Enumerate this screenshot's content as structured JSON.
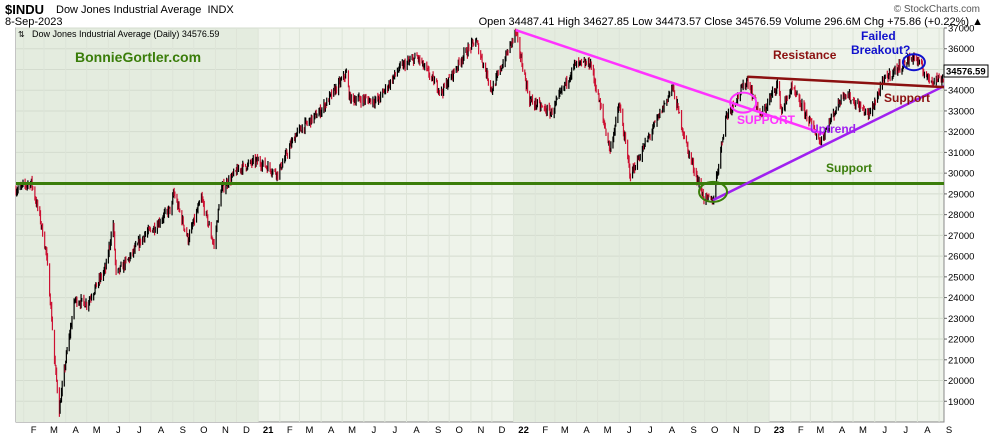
{
  "header": {
    "symbol": "$INDU",
    "name": "Dow Jones Industrial Average",
    "exchange": "INDX",
    "date": "8-Sep-2023",
    "ohlc_text": "Open 34487.41  High 34627.85  Low 34473.57  Close 34576.59  Volume 296.6M  Chg +75.86 (+0.22%) ▲",
    "brand": "© StockCharts.com"
  },
  "colors": {
    "up": "#000000",
    "down": "#cc1133",
    "support": "#3a7d0a",
    "magenta": "#ff33ff",
    "purple": "#a020f0",
    "resistance": "#8b1010",
    "blue": "#1111cc",
    "shade": "#e4ecdf",
    "panel": "#eef3ea"
  },
  "chart_data": {
    "type": "line",
    "title": "Dow Jones Industrial Average (Daily) 34576.59",
    "watermark": "BonnieGortler.com",
    "last_value_label": "34576.59",
    "ylim": [
      18000,
      37000
    ],
    "y_ticks": [
      19000,
      20000,
      21000,
      22000,
      23000,
      24000,
      25000,
      26000,
      27000,
      28000,
      29000,
      30000,
      31000,
      32000,
      33000,
      34000,
      35000,
      36000,
      37000
    ],
    "x_tick_labels": [
      "F",
      "M",
      "A",
      "M",
      "J",
      "J",
      "A",
      "S",
      "O",
      "N",
      "D",
      "21",
      "F",
      "M",
      "A",
      "M",
      "J",
      "J",
      "A",
      "S",
      "O",
      "N",
      "D",
      "22",
      "F",
      "M",
      "A",
      "M",
      "J",
      "J",
      "A",
      "S",
      "O",
      "N",
      "D",
      "23",
      "F",
      "M",
      "A",
      "M",
      "J",
      "J",
      "A",
      "S"
    ],
    "x_range": [
      "2020-01-21",
      "2023-09-08"
    ],
    "series": [
      {
        "values": [
          [
            "2020-01-21",
            29200
          ],
          [
            "2020-02-12",
            29550
          ],
          [
            "2020-02-24",
            27900
          ],
          [
            "2020-03-04",
            26200
          ],
          [
            "2020-03-11",
            23500
          ],
          [
            "2020-03-16",
            21000
          ],
          [
            "2020-03-23",
            18590
          ],
          [
            "2020-04-01",
            20950
          ],
          [
            "2020-04-14",
            23900
          ],
          [
            "2020-05-01",
            23700
          ],
          [
            "2020-05-28",
            25400
          ],
          [
            "2020-06-08",
            27570
          ],
          [
            "2020-06-12",
            25100
          ],
          [
            "2020-07-01",
            25900
          ],
          [
            "2020-07-22",
            27000
          ],
          [
            "2020-08-06",
            27400
          ],
          [
            "2020-08-31",
            28400
          ],
          [
            "2020-09-02",
            29100
          ],
          [
            "2020-09-23",
            26800
          ],
          [
            "2020-10-12",
            28800
          ],
          [
            "2020-10-30",
            26500
          ],
          [
            "2020-11-09",
            29200
          ],
          [
            "2020-12-04",
            30200
          ],
          [
            "2020-12-31",
            30600
          ],
          [
            "2021-01-29",
            29980
          ],
          [
            "2021-02-24",
            31900
          ],
          [
            "2021-03-31",
            32980
          ],
          [
            "2021-05-07",
            34800
          ],
          [
            "2021-05-12",
            33600
          ],
          [
            "2021-06-21",
            33500
          ],
          [
            "2021-07-23",
            35100
          ],
          [
            "2021-08-16",
            35600
          ],
          [
            "2021-09-20",
            33900
          ],
          [
            "2021-10-22",
            35700
          ],
          [
            "2021-11-08",
            36400
          ],
          [
            "2021-12-01",
            34000
          ],
          [
            "2022-01-04",
            36800
          ],
          [
            "2022-01-24",
            33500
          ],
          [
            "2022-02-24",
            32900
          ],
          [
            "2022-03-29",
            35200
          ],
          [
            "2022-04-21",
            35300
          ],
          [
            "2022-05-19",
            31100
          ],
          [
            "2022-06-01",
            33300
          ],
          [
            "2022-06-17",
            29900
          ],
          [
            "2022-07-29",
            32850
          ],
          [
            "2022-08-16",
            34150
          ],
          [
            "2022-09-07",
            31100
          ],
          [
            "2022-09-30",
            28800
          ],
          [
            "2022-10-13",
            28660
          ],
          [
            "2022-10-31",
            32700
          ],
          [
            "2022-12-01",
            34500
          ],
          [
            "2022-12-20",
            32700
          ],
          [
            "2023-01-13",
            34300
          ],
          [
            "2023-01-19",
            33000
          ],
          [
            "2023-02-02",
            34100
          ],
          [
            "2023-02-27",
            32600
          ],
          [
            "2023-03-15",
            31500
          ],
          [
            "2023-04-18",
            33900
          ],
          [
            "2023-05-24",
            32800
          ],
          [
            "2023-06-16",
            34600
          ],
          [
            "2023-07-27",
            35650
          ],
          [
            "2023-08-18",
            34500
          ],
          [
            "2023-09-08",
            34576
          ]
        ]
      }
    ],
    "annotations": {
      "resistance": "Resistance",
      "failed_breakout": [
        "Failed",
        "Breakout?"
      ],
      "support_right": "Support",
      "support_magenta": "SUPPORT",
      "uptrend": "Uptrend",
      "support_green": "Support"
    }
  }
}
